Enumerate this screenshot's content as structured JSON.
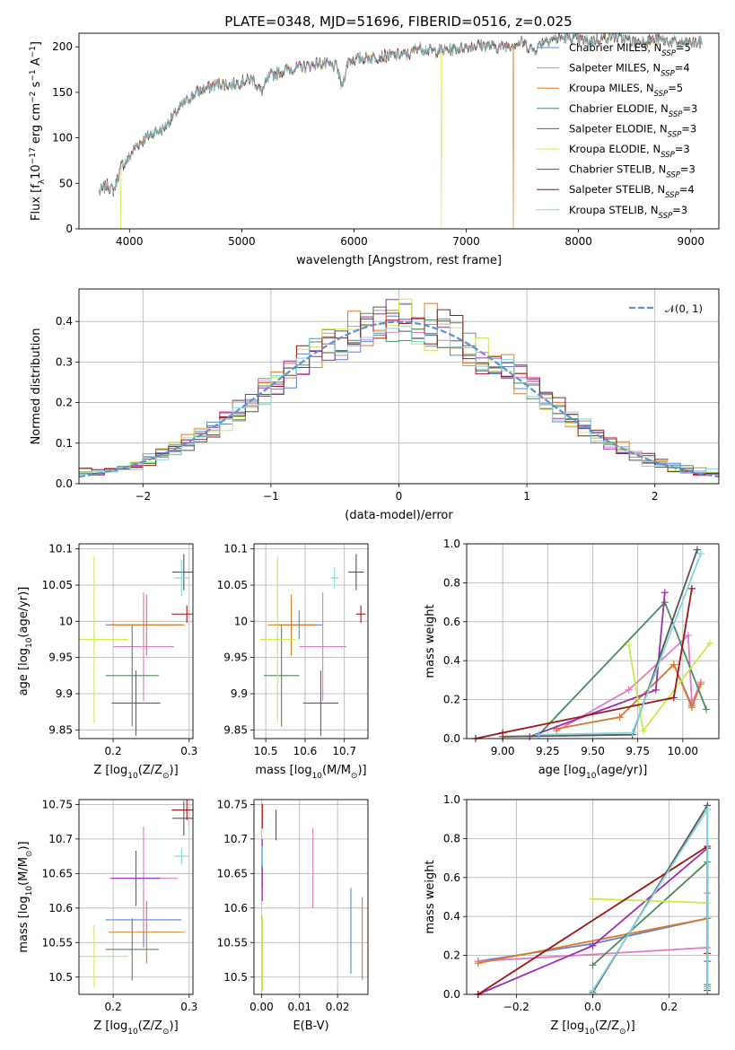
{
  "figure": {
    "title": "PLATE=0348, MJD=51696, FIBERID=0516, z=0.025"
  },
  "series": [
    {
      "name": "Chabrier MILES",
      "nssp": "5",
      "color": "#5b84d6"
    },
    {
      "name": "Salpeter MILES",
      "nssp": "4",
      "color": "#e07ac4"
    },
    {
      "name": "Kroupa MILES",
      "nssp": "5",
      "color": "#e07b24"
    },
    {
      "name": "Chabrier ELODIE",
      "nssp": "3",
      "color": "#4e8a5a"
    },
    {
      "name": "Salpeter ELODIE",
      "nssp": "3",
      "color": "#9b2fb5"
    },
    {
      "name": "Kroupa ELODIE",
      "nssp": "3",
      "color": "#c6ec4a"
    },
    {
      "name": "Chabrier STELIB",
      "nssp": "3",
      "color": "#555555"
    },
    {
      "name": "Salpeter STELIB",
      "nssp": "4",
      "color": "#a01515"
    },
    {
      "name": "Kroupa STELIB",
      "nssp": "3",
      "color": "#7fd6e0"
    }
  ],
  "chart_data": [
    {
      "id": "spectrum",
      "type": "line",
      "xlabel": "wavelength [Angstrom, rest frame]",
      "ylabel_parts": [
        "Flux [f",
        "λ",
        "10",
        "−17",
        " erg cm",
        "−2",
        " s",
        "−1",
        " A",
        "−1",
        "]"
      ],
      "xlim": [
        3550,
        9250
      ],
      "ylim": [
        0,
        215
      ],
      "xticks": [
        4000,
        5000,
        6000,
        7000,
        8000,
        9000
      ],
      "yticks": [
        0,
        50,
        100,
        150,
        200
      ],
      "curve": [
        [
          3730,
          40
        ],
        [
          3800,
          48
        ],
        [
          3860,
          42
        ],
        [
          3930,
          70
        ],
        [
          3980,
          75
        ],
        [
          4050,
          90
        ],
        [
          4100,
          95
        ],
        [
          4200,
          105
        ],
        [
          4300,
          110
        ],
        [
          4400,
          125
        ],
        [
          4500,
          140
        ],
        [
          4600,
          150
        ],
        [
          4700,
          155
        ],
        [
          4800,
          160
        ],
        [
          4900,
          158
        ],
        [
          5000,
          162
        ],
        [
          5100,
          165
        ],
        [
          5175,
          150
        ],
        [
          5250,
          168
        ],
        [
          5400,
          175
        ],
        [
          5550,
          178
        ],
        [
          5700,
          182
        ],
        [
          5850,
          178
        ],
        [
          5890,
          155
        ],
        [
          5950,
          185
        ],
        [
          6100,
          188
        ],
        [
          6300,
          190
        ],
        [
          6500,
          192
        ],
        [
          6563,
          200
        ],
        [
          6700,
          195
        ],
        [
          6900,
          198
        ],
        [
          7100,
          202
        ],
        [
          7300,
          200
        ],
        [
          7500,
          205
        ],
        [
          7600,
          196
        ],
        [
          7700,
          208
        ],
        [
          7900,
          210
        ],
        [
          8100,
          206
        ],
        [
          8300,
          212
        ],
        [
          8500,
          205
        ],
        [
          8700,
          208
        ],
        [
          8900,
          204
        ],
        [
          9100,
          205
        ]
      ],
      "drops": [
        [
          3920,
          0,
          5
        ],
        [
          6780,
          0,
          5
        ],
        [
          7420,
          0,
          2
        ]
      ]
    },
    {
      "id": "residuals",
      "type": "step",
      "xlabel": "(data-model)/error",
      "ylabel": "Normed distribution",
      "xlim": [
        -2.5,
        2.5
      ],
      "ylim": [
        0,
        0.48
      ],
      "xticks": [
        -2,
        -1,
        0,
        1,
        2
      ],
      "xticklabels": [
        "−2",
        "−1",
        "0",
        "1",
        "2"
      ],
      "yticks": [
        0,
        0.1,
        0.2,
        0.3,
        0.4
      ],
      "yticklabels": [
        "0.0",
        "0.1",
        "0.2",
        "0.3",
        "0.4"
      ],
      "bin_width": 0.1,
      "curve_label": "𝒩(0, 1)"
    },
    {
      "id": "age-vs-z",
      "type": "errorbar",
      "xlabel_parts": [
        "Z [log",
        "10",
        "(Z/Z",
        "⊙",
        ")]"
      ],
      "ylabel_parts": [
        "age  [log",
        "10",
        "(age/yr)]"
      ],
      "xlim": [
        0.155,
        0.305
      ],
      "ylim": [
        9.838,
        10.107
      ],
      "xticks": [
        0.2,
        0.3
      ],
      "yticks": [
        9.85,
        9.9,
        9.95,
        10.0,
        10.05,
        10.1
      ],
      "points": [
        {
          "s": 0,
          "x": 0.24,
          "y": 9.995,
          "xerr": 0.05,
          "yerr": 0.02
        },
        {
          "s": 1,
          "x": 0.24,
          "y": 9.965,
          "xerr": 0.04,
          "yerr": 0.075
        },
        {
          "s": 2,
          "x": 0.244,
          "y": 9.995,
          "xerr": 0.05,
          "yerr": 0.042
        },
        {
          "s": 3,
          "x": 0.225,
          "y": 9.925,
          "xerr": 0.035,
          "yerr": 0.07
        },
        {
          "s": 4,
          "x": 0.23,
          "y": 9.887,
          "xerr": 0.032,
          "yerr": 0.045
        },
        {
          "s": 5,
          "x": 0.175,
          "y": 9.975,
          "xerr": 0.045,
          "yerr": 0.115
        },
        {
          "s": 6,
          "x": 0.293,
          "y": 10.068,
          "xerr": 0.015,
          "yerr": 0.025
        },
        {
          "s": 7,
          "x": 0.297,
          "y": 10.01,
          "xerr": 0.02,
          "yerr": 0.012
        },
        {
          "s": 8,
          "x": 0.29,
          "y": 10.06,
          "xerr": 0.01,
          "yerr": 0.025
        }
      ]
    },
    {
      "id": "age-vs-mass",
      "type": "errorbar",
      "xlabel_parts": [
        "mass [log",
        "10",
        "(M/M",
        "⊙",
        ")]"
      ],
      "ylabel_parts": [],
      "xlim": [
        10.47,
        10.76
      ],
      "ylim": [
        9.838,
        10.107
      ],
      "xticks": [
        10.5,
        10.6,
        10.7
      ],
      "yticks": [
        9.85,
        9.9,
        9.95,
        10.0,
        10.05,
        10.1
      ],
      "points": [
        {
          "s": 0,
          "x": 10.585,
          "y": 9.995,
          "xerr": 0.06,
          "yerr": 0.02
        },
        {
          "s": 1,
          "x": 10.645,
          "y": 9.965,
          "xerr": 0.06,
          "yerr": 0.075
        },
        {
          "s": 2,
          "x": 10.565,
          "y": 9.995,
          "xerr": 0.06,
          "yerr": 0.042
        },
        {
          "s": 3,
          "x": 10.54,
          "y": 9.925,
          "xerr": 0.045,
          "yerr": 0.07
        },
        {
          "s": 4,
          "x": 10.64,
          "y": 9.887,
          "xerr": 0.045,
          "yerr": 0.045
        },
        {
          "s": 5,
          "x": 10.53,
          "y": 9.975,
          "xerr": 0.045,
          "yerr": 0.115
        },
        {
          "s": 6,
          "x": 10.73,
          "y": 10.068,
          "xerr": 0.02,
          "yerr": 0.025
        },
        {
          "s": 7,
          "x": 10.742,
          "y": 10.01,
          "xerr": 0.012,
          "yerr": 0.012
        },
        {
          "s": 8,
          "x": 10.675,
          "y": 10.06,
          "xerr": 0.01,
          "yerr": 0.015
        }
      ]
    },
    {
      "id": "mass-vs-z",
      "type": "errorbar",
      "xlabel_parts": [
        "Z [log",
        "10",
        "(Z/Z",
        "⊙",
        ")]"
      ],
      "ylabel_parts": [
        "mass [log",
        "10",
        "(M/M",
        "⊙",
        ")]"
      ],
      "xlim": [
        0.155,
        0.305
      ],
      "ylim": [
        10.475,
        10.757
      ],
      "xticks": [
        0.2,
        0.3
      ],
      "yticks": [
        10.5,
        10.55,
        10.6,
        10.65,
        10.7,
        10.75
      ],
      "points": [
        {
          "s": 0,
          "x": 0.24,
          "y": 10.583,
          "xerr": 0.05,
          "yerr": 0.04
        },
        {
          "s": 1,
          "x": 0.24,
          "y": 10.643,
          "xerr": 0.045,
          "yerr": 0.075
        },
        {
          "s": 2,
          "x": 0.244,
          "y": 10.565,
          "xerr": 0.05,
          "yerr": 0.045
        },
        {
          "s": 3,
          "x": 0.225,
          "y": 10.54,
          "xerr": 0.035,
          "yerr": 0.045
        },
        {
          "s": 4,
          "x": 0.23,
          "y": 10.643,
          "xerr": 0.032,
          "yerr": 0.04
        },
        {
          "s": 5,
          "x": 0.175,
          "y": 10.53,
          "xerr": 0.045,
          "yerr": 0.045
        },
        {
          "s": 6,
          "x": 0.293,
          "y": 10.73,
          "xerr": 0.015,
          "yerr": 0.025
        },
        {
          "s": 7,
          "x": 0.297,
          "y": 10.742,
          "xerr": 0.02,
          "yerr": 0.015
        },
        {
          "s": 8,
          "x": 0.29,
          "y": 10.675,
          "xerr": 0.01,
          "yerr": 0.012
        }
      ]
    },
    {
      "id": "mass-vs-ebv",
      "type": "errorbar",
      "xlabel": "E(B-V)",
      "ylabel_parts": [],
      "xlim": [
        -0.002,
        0.028
      ],
      "ylim": [
        10.475,
        10.757
      ],
      "xticks": [
        0.0,
        0.01,
        0.02
      ],
      "xticklabels": [
        "0.00",
        "0.01",
        "0.02"
      ],
      "yticks": [
        10.5,
        10.55,
        10.6,
        10.65,
        10.7,
        10.75
      ],
      "points": [
        {
          "s": 0,
          "x": 0.0235,
          "y": 10.567,
          "xerr": 0,
          "yerr": 0.062
        },
        {
          "s": 1,
          "x": 0.0135,
          "y": 10.658,
          "xerr": 0,
          "yerr": 0.058
        },
        {
          "s": 2,
          "x": 0.0265,
          "y": 10.556,
          "xerr": 0,
          "yerr": 0.06
        },
        {
          "s": 3,
          "x": 0.0002,
          "y": 10.648,
          "xerr": 0,
          "yerr": 0.02
        },
        {
          "s": 4,
          "x": 0.0002,
          "y": 10.655,
          "xerr": 0,
          "yerr": 0.045
        },
        {
          "s": 5,
          "x": 0.0002,
          "y": 10.535,
          "xerr": 0,
          "yerr": 0.055
        },
        {
          "s": 6,
          "x": 0.0038,
          "y": 10.72,
          "xerr": 0,
          "yerr": 0.022
        },
        {
          "s": 7,
          "x": 0.0002,
          "y": 10.733,
          "xerr": 0,
          "yerr": 0.018
        },
        {
          "s": 8,
          "x": 0.0002,
          "y": 10.675,
          "xerr": 0,
          "yerr": 0.015
        }
      ]
    },
    {
      "id": "weight-vs-age",
      "type": "line",
      "xlabel_parts": [
        "age  [log",
        "10",
        "(age/yr)]"
      ],
      "ylabel": "mass weight",
      "xlim": [
        8.8,
        10.2
      ],
      "ylim": [
        0,
        1
      ],
      "xticks": [
        9.0,
        9.25,
        9.5,
        9.75,
        10.0
      ],
      "xticklabels": [
        "9.00",
        "9.25",
        "9.50",
        "9.75",
        "10.00"
      ],
      "yticks": [
        0,
        0.2,
        0.4,
        0.6,
        0.8,
        1.0
      ],
      "yticklabels": [
        "0.0",
        "0.2",
        "0.4",
        "0.6",
        "0.8",
        "1.0"
      ],
      "lines": [
        {
          "s": 0,
          "pts": [
            [
              9.3,
              0.05
            ],
            [
              9.65,
              0.11
            ],
            [
              9.95,
              0.38
            ],
            [
              10.05,
              0.17
            ],
            [
              10.1,
              0.29
            ]
          ]
        },
        {
          "s": 1,
          "pts": [
            [
              9.3,
              0.04
            ],
            [
              9.7,
              0.25
            ],
            [
              10.03,
              0.53
            ],
            [
              10.05,
              0.18
            ],
            [
              10.1,
              0.29
            ]
          ]
        },
        {
          "s": 2,
          "pts": [
            [
              9.3,
              0.05
            ],
            [
              9.65,
              0.11
            ],
            [
              9.95,
              0.38
            ],
            [
              10.05,
              0.16
            ],
            [
              10.1,
              0.28
            ]
          ]
        },
        {
          "s": 3,
          "pts": [
            [
              9.2,
              0.02
            ],
            [
              9.9,
              0.7
            ],
            [
              10.13,
              0.15
            ]
          ]
        },
        {
          "s": 4,
          "pts": [
            [
              9.15,
              0.01
            ],
            [
              9.85,
              0.25
            ],
            [
              9.9,
              0.75
            ]
          ]
        },
        {
          "s": 5,
          "pts": [
            [
              9.7,
              0.48
            ],
            [
              9.78,
              0.04
            ],
            [
              10.15,
              0.49
            ]
          ]
        },
        {
          "s": 6,
          "pts": [
            [
              9.0,
              0.01
            ],
            [
              9.72,
              0.02
            ],
            [
              10.08,
              0.97
            ]
          ]
        },
        {
          "s": 7,
          "pts": [
            [
              8.85,
              0.0
            ],
            [
              9.0,
              0.03
            ],
            [
              9.95,
              0.21
            ],
            [
              10.05,
              0.77
            ]
          ]
        },
        {
          "s": 8,
          "pts": [
            [
              9.2,
              0.02
            ],
            [
              9.72,
              0.03
            ],
            [
              10.1,
              0.95
            ]
          ]
        }
      ]
    },
    {
      "id": "weight-vs-z",
      "type": "line",
      "xlabel_parts": [
        "Z [log",
        "10",
        "(Z/Z",
        "⊙",
        ")]"
      ],
      "ylabel": "mass weight",
      "xlim": [
        -0.33,
        0.33
      ],
      "ylim": [
        0,
        1
      ],
      "xticks": [
        -0.2,
        0.0,
        0.2
      ],
      "xticklabels": [
        "−0.2",
        "0.0",
        "0.2"
      ],
      "yticks": [
        0,
        0.2,
        0.4,
        0.6,
        0.8,
        1.0
      ],
      "yticklabels": [
        "0.0",
        "0.2",
        "0.4",
        "0.6",
        "0.8",
        "1.0"
      ],
      "lines": [
        {
          "s": 0,
          "pts": [
            [
              -0.3,
              0.17
            ],
            [
              0.0,
              0.26
            ],
            [
              0.3,
              0.39
            ],
            [
              0.3,
              0.05
            ]
          ]
        },
        {
          "s": 1,
          "pts": [
            [
              -0.3,
              0.17
            ],
            [
              0.3,
              0.24
            ],
            [
              0.3,
              0.52
            ]
          ]
        },
        {
          "s": 2,
          "pts": [
            [
              -0.3,
              0.16
            ],
            [
              0.3,
              0.39
            ],
            [
              0.3,
              0.04
            ]
          ]
        },
        {
          "s": 3,
          "pts": [
            [
              0.0,
              0.15
            ],
            [
              0.3,
              0.68
            ],
            [
              0.3,
              0.17
            ]
          ]
        },
        {
          "s": 4,
          "pts": [
            [
              -0.3,
              0.0
            ],
            [
              0.0,
              0.25
            ],
            [
              0.3,
              0.75
            ]
          ]
        },
        {
          "s": 5,
          "pts": [
            [
              0.0,
              0.49
            ],
            [
              0.3,
              0.47
            ]
          ]
        },
        {
          "s": 6,
          "pts": [
            [
              0.0,
              0.01
            ],
            [
              0.3,
              0.97
            ],
            [
              0.3,
              0.02
            ]
          ]
        },
        {
          "s": 7,
          "pts": [
            [
              -0.3,
              0.0
            ],
            [
              0.3,
              0.76
            ],
            [
              0.3,
              0.21
            ]
          ]
        },
        {
          "s": 8,
          "pts": [
            [
              0.0,
              0.02
            ],
            [
              0.3,
              0.95
            ],
            [
              0.3,
              0.03
            ]
          ]
        }
      ]
    }
  ]
}
